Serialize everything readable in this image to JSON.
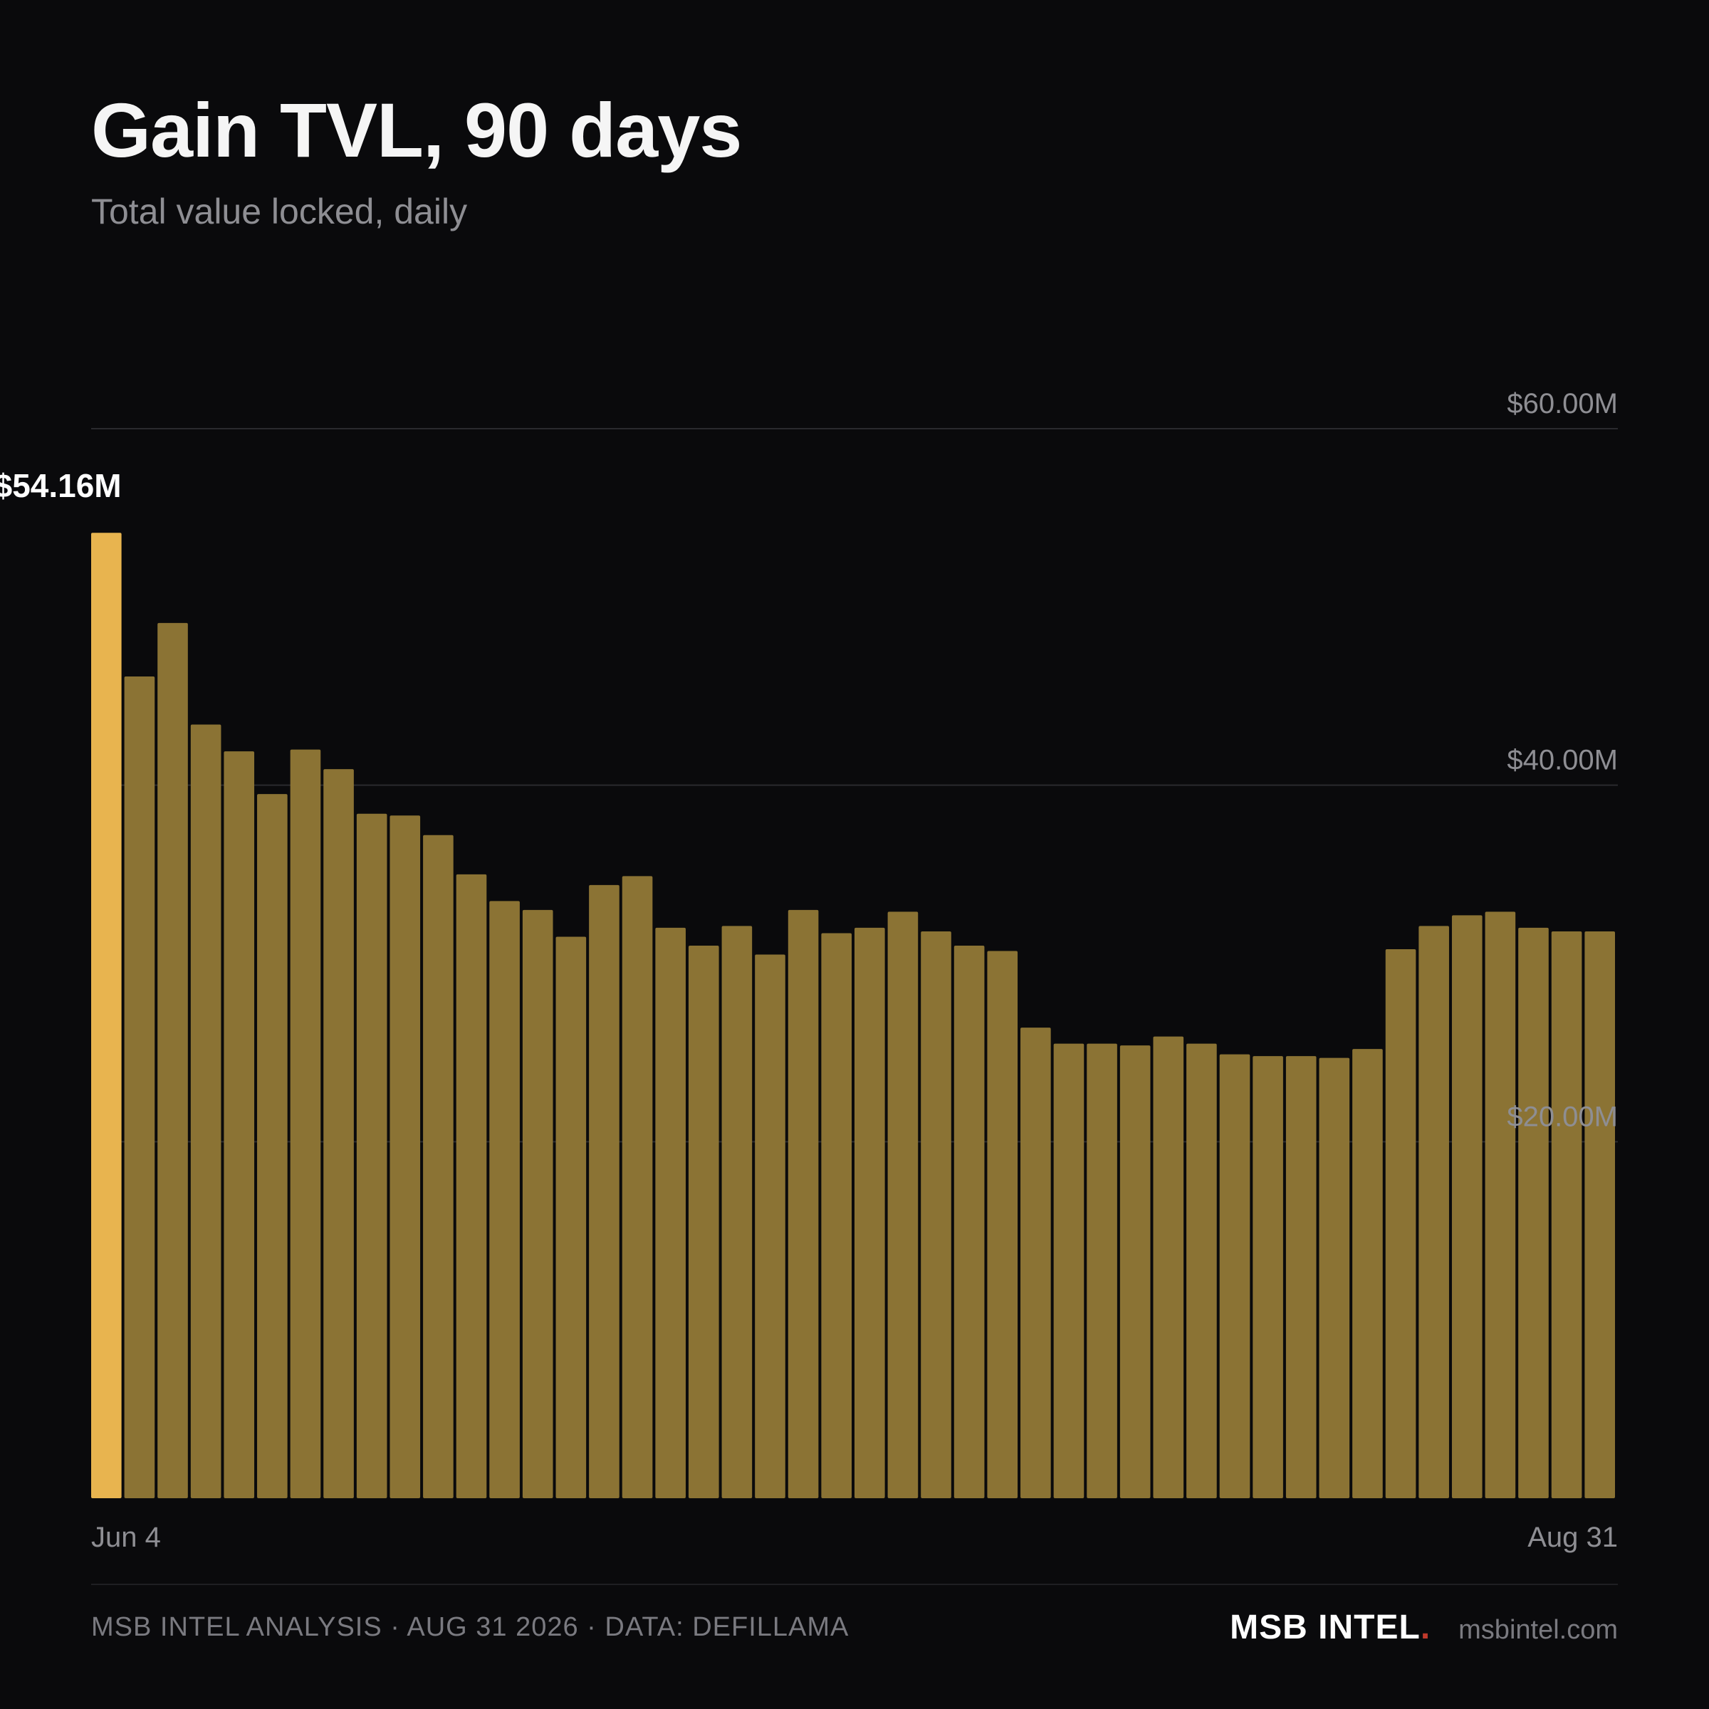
{
  "title": "Gain TVL, 90 days",
  "subtitle": "Total value locked, daily",
  "footer": {
    "source_text": "MSB INTEL ANALYSIS · AUG 31 2026 · DATA: DEFILLAMA",
    "brand": "MSB INTEL",
    "brand_dot": ".",
    "site": "msbintel.com"
  },
  "colors": {
    "background": "#0a0a0c",
    "bar": "#8b7334",
    "bar_highlight": "#e8b44f",
    "brand_dot": "#c0392b"
  },
  "chart_data": {
    "type": "bar",
    "title": "Gain TVL, 90 days",
    "subtitle": "Total value locked, daily",
    "x_tick_labels": [
      "Jun 4",
      "Aug 31"
    ],
    "y_tick_labels": [
      "$20.00M",
      "$40.00M",
      "$60.00M"
    ],
    "y_ticks": [
      20,
      40,
      60
    ],
    "ylim": [
      0,
      60
    ],
    "units": "$M",
    "grid": true,
    "highlight_index": 0,
    "highlight_label": "$54.16M",
    "values": [
      54.16,
      46.1,
      49.1,
      43.4,
      41.9,
      39.5,
      42.0,
      40.9,
      38.4,
      38.3,
      37.2,
      35.0,
      33.5,
      33.0,
      31.5,
      34.4,
      34.9,
      32.0,
      31.0,
      32.1,
      30.5,
      33.0,
      31.7,
      32.0,
      32.9,
      31.8,
      31.0,
      30.7,
      26.4,
      25.5,
      25.5,
      25.4,
      25.9,
      25.5,
      24.9,
      24.8,
      24.8,
      24.7,
      25.2,
      30.8,
      32.1,
      32.7,
      32.9,
      32.0,
      31.8,
      31.8
    ]
  }
}
